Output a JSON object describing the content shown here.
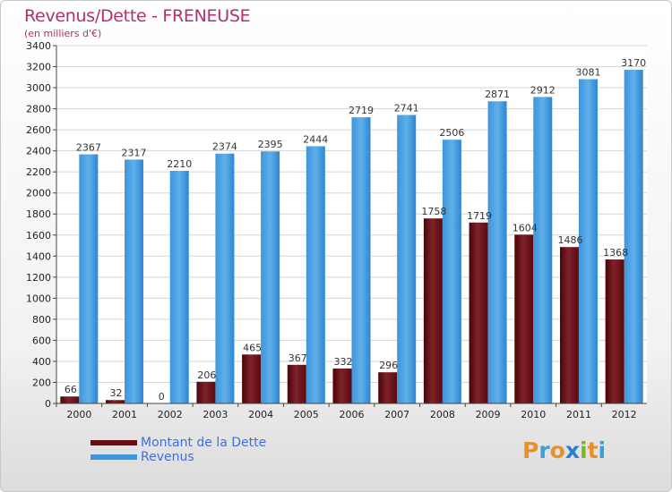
{
  "title": "Revenus/Dette - FRENEUSE",
  "subtitle": "(en milliers d'€)",
  "logo": {
    "text": "Proxiti",
    "letters": [
      "P",
      "r",
      "o",
      "x",
      "i",
      "t",
      "i"
    ],
    "colors": [
      "#e8912a",
      "#3aa0d8",
      "#e8912a",
      "#2a7fd0",
      "#77b82a",
      "#e8912a",
      "#3aa0d8"
    ]
  },
  "colors": {
    "dette": "#6b0c12",
    "revenus": "#3d95dc",
    "title": "#b0306a",
    "legend_text": "#3f6fd8"
  },
  "chart_data": {
    "type": "bar",
    "title": "Revenus/Dette - FRENEUSE",
    "ylabel": "(en milliers d'€)",
    "ylim": [
      0,
      3400
    ],
    "yticks": [
      0,
      200,
      400,
      600,
      800,
      1000,
      1200,
      1400,
      1600,
      1800,
      2000,
      2200,
      2400,
      2600,
      2800,
      3000,
      3200,
      3400
    ],
    "categories": [
      "2000",
      "2001",
      "2002",
      "2003",
      "2004",
      "2005",
      "2006",
      "2007",
      "2008",
      "2009",
      "2010",
      "2011",
      "2012"
    ],
    "series": [
      {
        "name": "Montant de la Dette",
        "values": [
          66,
          32,
          0,
          206,
          465,
          367,
          332,
          296,
          1758,
          1719,
          1604,
          1486,
          1368
        ],
        "labels": [
          "66",
          "32",
          "0",
          "206",
          "465",
          "367",
          "332",
          "296",
          "1758",
          "1719",
          "1604",
          "1486",
          "1368"
        ]
      },
      {
        "name": "Revenus",
        "values": [
          2367,
          2317,
          2210,
          2374,
          2395,
          2444,
          2719,
          2741,
          2506,
          2871,
          2912,
          3081,
          3170
        ],
        "labels": [
          "2367",
          "2317",
          "2210",
          "2374",
          "2395",
          "2444",
          "2719",
          "2741",
          "2506",
          "2871",
          "2912",
          "3081",
          "3170"
        ]
      }
    ],
    "legend_position": "bottom-left",
    "grid": true
  }
}
